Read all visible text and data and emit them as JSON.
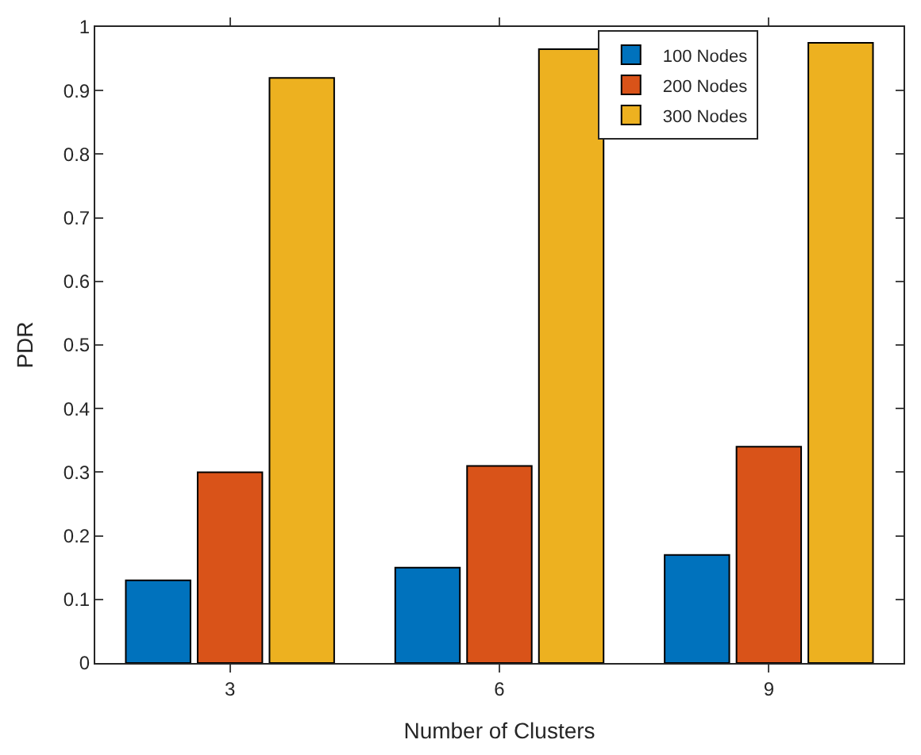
{
  "chart_data": {
    "type": "bar",
    "xlabel": "Number of Clusters",
    "ylabel": "PDR",
    "categories": [
      "3",
      "6",
      "9"
    ],
    "series": [
      {
        "name": "100 Nodes",
        "color": "#0072bd",
        "values": [
          0.13,
          0.15,
          0.17
        ]
      },
      {
        "name": "200 Nodes",
        "color": "#d95319",
        "values": [
          0.3,
          0.31,
          0.34
        ]
      },
      {
        "name": "300 Nodes",
        "color": "#edb120",
        "values": [
          0.92,
          0.965,
          0.975
        ]
      }
    ],
    "ylim": [
      0,
      1
    ],
    "yticks": [
      0,
      0.1,
      0.2,
      0.3,
      0.4,
      0.5,
      0.6,
      0.7,
      0.8,
      0.9,
      1
    ],
    "legend": "top right"
  }
}
